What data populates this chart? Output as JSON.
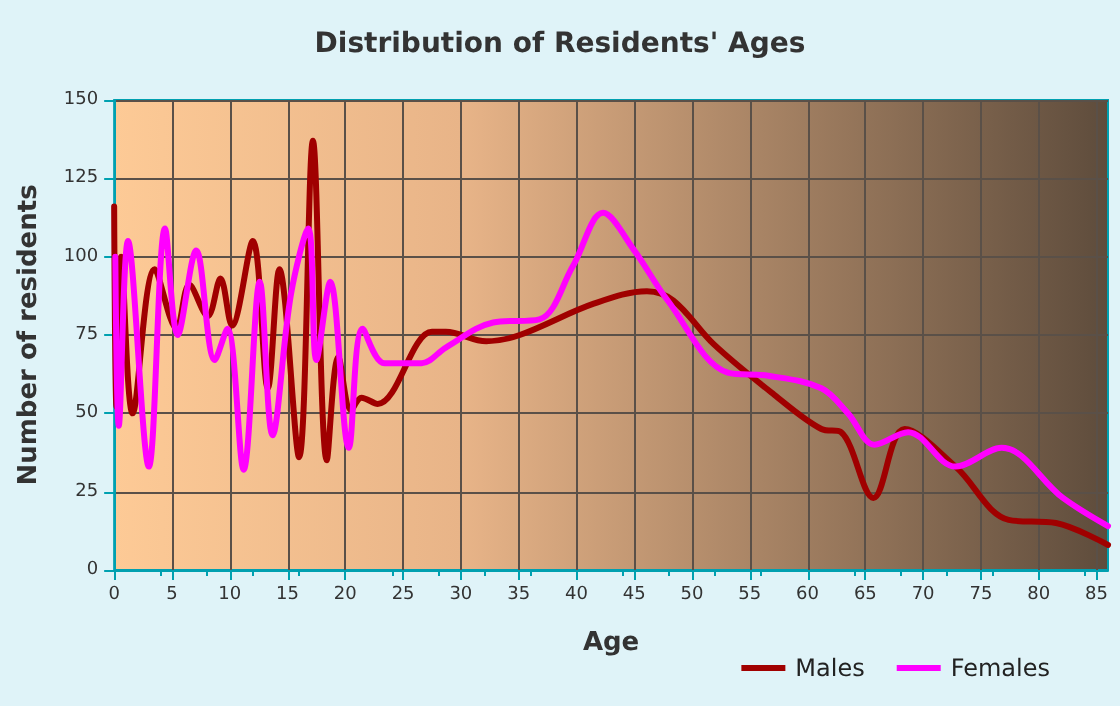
{
  "chart_data": {
    "type": "line",
    "title": "Distribution of Residents' Ages",
    "xlabel": "Age",
    "ylabel": "Number of residents",
    "xlim": [
      0,
      86
    ],
    "xticks": [
      0,
      5,
      10,
      15,
      20,
      25,
      30,
      35,
      40,
      45,
      50,
      55,
      60,
      65,
      70,
      75,
      80,
      85
    ],
    "ylim": [
      0,
      150
    ],
    "yticks": [
      0,
      25,
      50,
      75,
      100,
      125,
      150
    ],
    "grid": true,
    "legend": "bottom right",
    "marker": "none",
    "line_style": "solid",
    "series": [
      {
        "name": "Males",
        "color": "#a00000",
        "x": [
          0,
          0.2,
          0.6,
          1.6,
          3.5,
          5.4,
          6.5,
          8.1,
          9.2,
          10.2,
          12,
          13.3,
          14.3,
          16,
          17.2,
          18.4,
          19.4,
          20.5,
          21.4,
          22.8,
          27.5,
          28.7,
          32.2,
          35.1,
          41.5,
          46.1,
          48.4,
          51.9,
          57.1,
          61.2,
          62.9,
          65.7,
          68.4,
          72.8,
          77.4,
          81.5,
          86
        ],
        "values": [
          116,
          52,
          100,
          50,
          96,
          77,
          91,
          81,
          93,
          78,
          105,
          58,
          96,
          36,
          137,
          35,
          68,
          51,
          55,
          53,
          76,
          76,
          73,
          75,
          85,
          89,
          86,
          72,
          56,
          45,
          44,
          23,
          45,
          33,
          16,
          15,
          8
        ]
      },
      {
        "name": "Females",
        "color": "#ff00ff",
        "x": [
          0.1,
          0.4,
          1.2,
          3,
          4.4,
          5.5,
          7.1,
          8.7,
          9.8,
          11.2,
          12.6,
          13.7,
          15.3,
          16.8,
          17.5,
          18.7,
          20.3,
          21.5,
          23.4,
          26.6,
          28.7,
          32.8,
          36.8,
          39.7,
          42.3,
          45,
          47.9,
          53.1,
          56.6,
          61.2,
          63.5,
          65.8,
          68.7,
          72.8,
          76.8,
          82.1,
          86
        ],
        "values": [
          100,
          46,
          105,
          33,
          109,
          75,
          102,
          67,
          77,
          32,
          92,
          43,
          88,
          109,
          67,
          92,
          39,
          77,
          66,
          66,
          71,
          79,
          80,
          97,
          114,
          102,
          86,
          63,
          62,
          58,
          50,
          40,
          44,
          33,
          39,
          23,
          14
        ]
      }
    ]
  }
}
